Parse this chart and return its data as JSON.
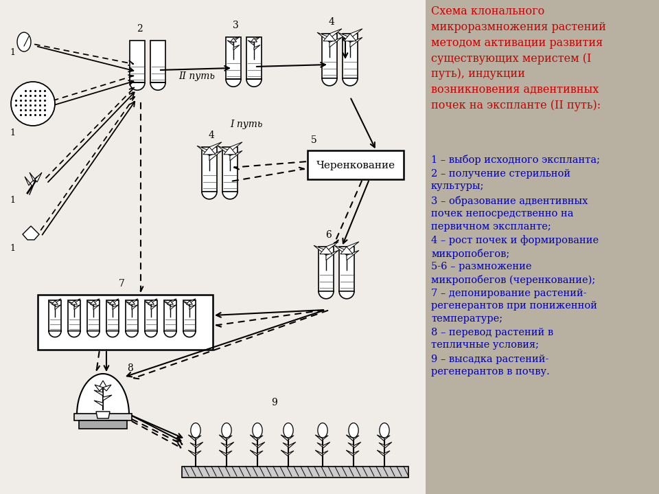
{
  "bg_left": "#f0ede8",
  "bg_right": "#b8b0a0",
  "title_color": "#cc0000",
  "legend_color": "#0000bb",
  "title": "Схема клонального\nмикроразмножения растений\nметодом активации развития\nсуществующих меристем (I\nпуть), индукции\nвозникновения адвентивных\nпочек на экспланте (II путь):",
  "legend": [
    "1 – выбор исходного экспланта;",
    "2 – получение стерильной\nкультуры;",
    "3 – образование адвентивных\nпочек непосредственно на\nпервичном экспланте;",
    "4 – рост почек и формирование\nмикропобегов;",
    "5-6 – размножение\nмикропобегов (черенкование);",
    "7 – депонирование растений-\nрегенерантов при пониженной\nтемпературе;",
    "8 – перевод растений в\nтепличные условия;",
    "9 – высадка растений-\nрегенерантов в почву."
  ]
}
